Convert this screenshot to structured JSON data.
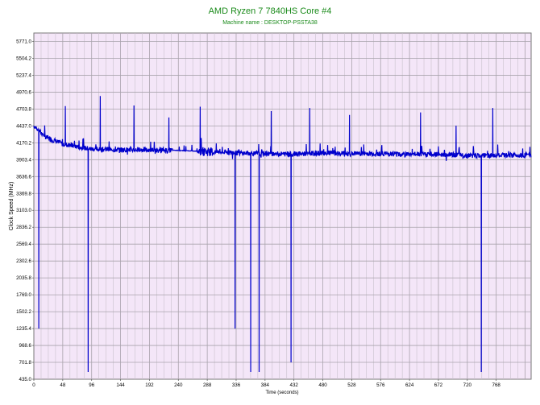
{
  "chart_data": {
    "type": "line",
    "title": "AMD Ryzen 7 7840HS Core #4",
    "subtitle": "Machine name : DESKTOP-PSSTA38",
    "xlabel": "Time (seconds)",
    "ylabel": "Clock Speed (MHz)",
    "xlim": [
      0,
      826
    ],
    "ylim": [
      435,
      5904.5
    ],
    "grid": true,
    "x_ticks": [
      0,
      48,
      96,
      144,
      192,
      240,
      288,
      336,
      384,
      432,
      480,
      528,
      576,
      624,
      672,
      720,
      768
    ],
    "y_ticks": [
      435.0,
      701.8,
      968.6,
      1235.4,
      1502.2,
      1769.0,
      2035.8,
      2302.6,
      2569.4,
      2836.2,
      3103.0,
      3369.8,
      3636.6,
      3903.4,
      4170.2,
      4437.0,
      4703.8,
      4970.6,
      5237.4,
      5504.2,
      5771.0
    ],
    "series": [
      {
        "color": "#0000cc",
        "baseline_points": [
          [
            0,
            4440
          ],
          [
            20,
            4260
          ],
          [
            48,
            4150
          ],
          [
            96,
            4070
          ],
          [
            144,
            4060
          ],
          [
            192,
            4060
          ],
          [
            240,
            4050
          ],
          [
            288,
            4030
          ],
          [
            336,
            4010
          ],
          [
            384,
            4000
          ],
          [
            432,
            3990
          ],
          [
            480,
            4010
          ],
          [
            528,
            4000
          ],
          [
            576,
            4000
          ],
          [
            624,
            3990
          ],
          [
            672,
            3990
          ],
          [
            720,
            3970
          ],
          [
            768,
            3970
          ],
          [
            826,
            3980
          ]
        ],
        "spikes_down": [
          [
            8,
            1235
          ],
          [
            90,
            550
          ],
          [
            334,
            1235
          ],
          [
            360,
            550
          ],
          [
            374,
            550
          ],
          [
            427,
            700
          ],
          [
            743,
            550
          ]
        ],
        "spikes_up": [
          [
            52,
            4750
          ],
          [
            110,
            4910
          ],
          [
            166,
            4760
          ],
          [
            224,
            4570
          ],
          [
            276,
            4740
          ],
          [
            394,
            4670
          ],
          [
            458,
            4720
          ],
          [
            524,
            4610
          ],
          [
            642,
            4650
          ],
          [
            701,
            4440
          ],
          [
            762,
            4720
          ]
        ]
      }
    ]
  }
}
